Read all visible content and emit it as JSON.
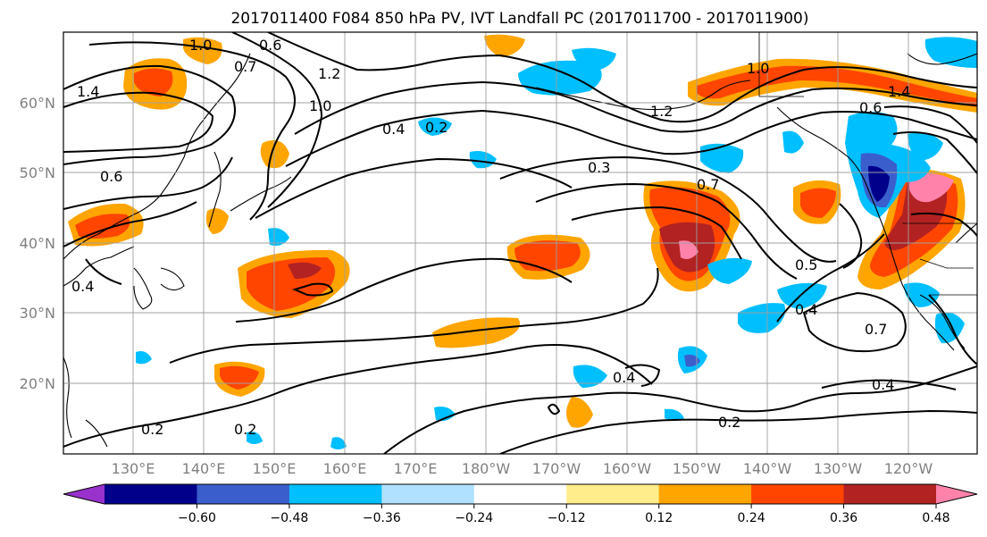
{
  "title": "2017011400 F084 850 hPa PV, IVT Landfall PC (2017011700 - 2017011900)",
  "lat_labels": [
    "60°N",
    "50°N",
    "40°N",
    "30°N",
    "20°N"
  ],
  "lon_labels": [
    "130°E",
    "140°E",
    "150°E",
    "160°E",
    "170°E",
    "180°W",
    "170°W",
    "160°W",
    "150°W",
    "140°W",
    "130°W",
    "120°W"
  ],
  "colorbar": {
    "ticks": [
      "−0.60",
      "−0.48",
      "−0.36",
      "−0.24",
      "−0.12",
      "0.12",
      "0.24",
      "0.36",
      "0.48",
      "0.60"
    ],
    "colors": [
      "#9932CC",
      "#00008B",
      "#3A5FCD",
      "#00BFFF",
      "#B0E2FF",
      "#FFFFFF",
      "#FFEC8B",
      "#FFA500",
      "#FF4500",
      "#B22222",
      "#FF82AB"
    ]
  },
  "contour_labels": [
    {
      "text": "1.0"
    },
    {
      "text": "0.6"
    },
    {
      "text": "0.7"
    },
    {
      "text": "1.2"
    },
    {
      "text": "1.0"
    },
    {
      "text": "1.4"
    },
    {
      "text": "0.6"
    },
    {
      "text": "0.4"
    },
    {
      "text": "0.2"
    },
    {
      "text": "0.3"
    },
    {
      "text": "0.7"
    },
    {
      "text": "0.5"
    },
    {
      "text": "0.4"
    },
    {
      "text": "0.7"
    },
    {
      "text": "0.4"
    },
    {
      "text": "0.2"
    },
    {
      "text": "0.4"
    },
    {
      "text": "0.2"
    },
    {
      "text": "0.2"
    },
    {
      "text": "1.0"
    },
    {
      "text": "1.4"
    },
    {
      "text": "0.6"
    },
    {
      "text": "1.2"
    },
    {
      "text": "0.4"
    }
  ]
}
